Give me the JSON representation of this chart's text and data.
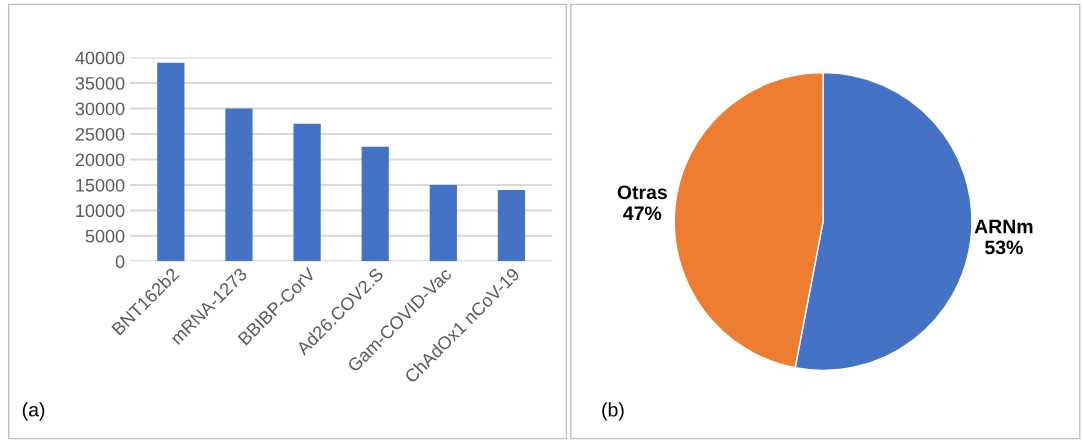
{
  "chart_data": [
    {
      "type": "bar",
      "categories": [
        "BNT162b2",
        "mRNA-1273",
        "BBIBP-CorV",
        "Ad26.COV2.S",
        "Gam-COVID-Vac",
        "ChAdOx1 nCoV-19"
      ],
      "values": [
        39000,
        30000,
        27000,
        22500,
        15000,
        14000
      ],
      "color": "#4472c4",
      "ylim": [
        0,
        40000
      ],
      "yticks": [
        0,
        5000,
        10000,
        15000,
        20000,
        25000,
        30000,
        35000,
        40000
      ],
      "grid": "y",
      "annotations": [
        "(a)"
      ]
    },
    {
      "type": "pie",
      "categories": [
        "ARNm",
        "Otras"
      ],
      "values": [
        53,
        47
      ],
      "colors": [
        "#4472c4",
        "#ed7d31"
      ],
      "value_labels": [
        "53%",
        "47%"
      ],
      "annotations": [
        "(b)"
      ]
    }
  ]
}
